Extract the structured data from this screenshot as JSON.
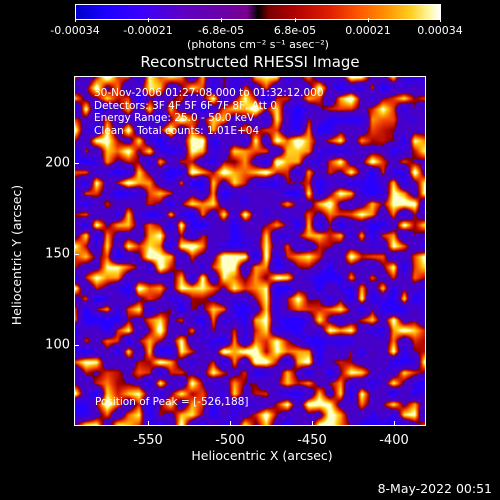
{
  "colorbar": {
    "tick_labels": [
      "-0.00034",
      "-0.00021",
      "-6.8e-05",
      "6.8e-05",
      "0.00021",
      "0.00034"
    ],
    "units": "(photons cm⁻² s⁻¹ asec⁻²)"
  },
  "title": "Reconstructed RHESSI Image",
  "info": {
    "line1": "30-Nov-2006 01:27:08.000 to 01:32:12.000",
    "line2": "Detectors: 3F 4F 5F 6F 7F 8F, Att 0",
    "line3": "Energy Range: 25.0 - 50.0 keV",
    "line4": "Clean    Total counts: 1.01E+04"
  },
  "peak": "Position of Peak = [-526,188]",
  "axes": {
    "xlabel": "Heliocentric X (arcsec)",
    "ylabel": "Heliocentric Y (arcsec)",
    "x_ticks": [
      "-550",
      "-500",
      "-450",
      "-400"
    ],
    "y_ticks": [
      "200",
      "150",
      "100"
    ],
    "x_range": [
      -587,
      -393
    ],
    "y_range": [
      55,
      245
    ]
  },
  "timestamp": "8-May-2022 00:51",
  "colors": {
    "background": "#000000",
    "text": "#ffffff"
  }
}
